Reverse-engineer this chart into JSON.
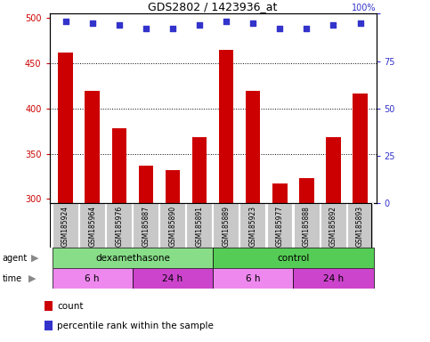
{
  "title": "GDS2802 / 1423936_at",
  "samples": [
    "GSM185924",
    "GSM185964",
    "GSM185976",
    "GSM185887",
    "GSM185890",
    "GSM185891",
    "GSM185889",
    "GSM185923",
    "GSM185977",
    "GSM185888",
    "GSM185892",
    "GSM185893"
  ],
  "counts": [
    462,
    420,
    378,
    337,
    332,
    368,
    465,
    420,
    317,
    323,
    368,
    417
  ],
  "percentile_ranks": [
    96,
    95,
    94,
    92,
    92,
    94,
    96,
    95,
    92,
    92,
    94,
    95
  ],
  "ylim_left": [
    295,
    505
  ],
  "ylim_right": [
    0,
    100
  ],
  "yticks_left": [
    300,
    350,
    400,
    450,
    500
  ],
  "yticks_right": [
    0,
    25,
    50,
    75,
    100
  ],
  "bar_color": "#cc0000",
  "dot_color": "#3333cc",
  "agent_groups": [
    {
      "label": "dexamethasone",
      "start": 0,
      "end": 6,
      "color": "#88dd88"
    },
    {
      "label": "control",
      "start": 6,
      "end": 12,
      "color": "#55cc55"
    }
  ],
  "time_groups": [
    {
      "label": "6 h",
      "start": 0,
      "end": 3,
      "color": "#ee88ee"
    },
    {
      "label": "24 h",
      "start": 3,
      "end": 6,
      "color": "#cc44cc"
    },
    {
      "label": "6 h",
      "start": 6,
      "end": 9,
      "color": "#ee88ee"
    },
    {
      "label": "24 h",
      "start": 9,
      "end": 12,
      "color": "#cc44cc"
    }
  ],
  "legend_items": [
    {
      "label": "count",
      "color": "#cc0000"
    },
    {
      "label": "percentile rank within the sample",
      "color": "#3333cc"
    }
  ],
  "bar_baseline": 295,
  "xlabel_color": "#cc0000",
  "ylabel_right_color": "#3333cc",
  "bg_color": "#ffffff",
  "grid_color": "#000000",
  "label_row_color": "#c8c8c8",
  "label_row_border": "#ffffff"
}
